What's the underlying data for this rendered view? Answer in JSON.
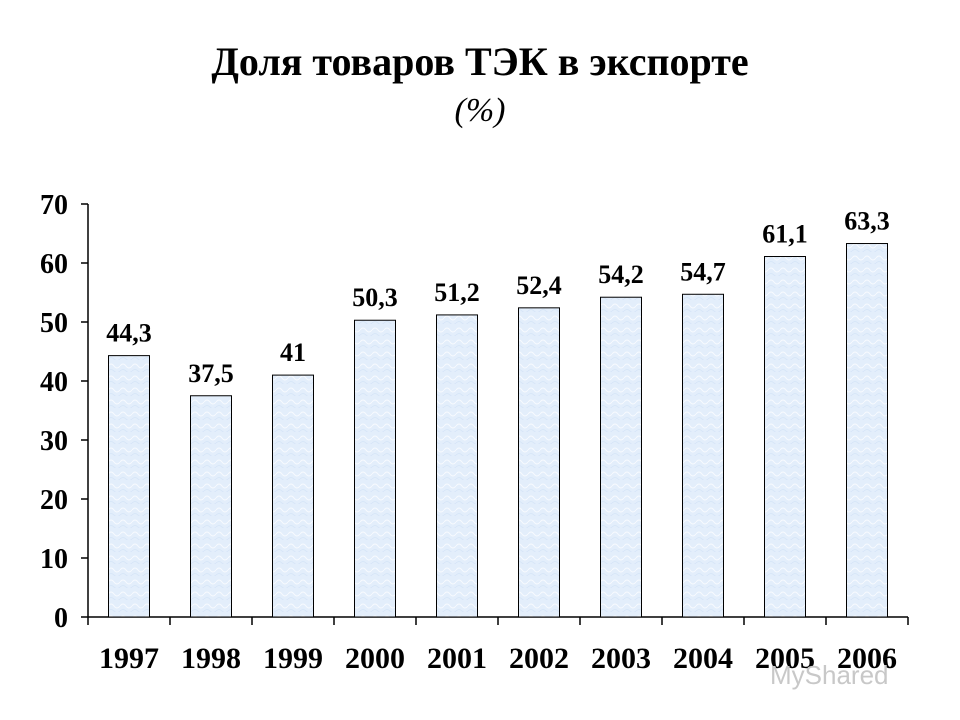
{
  "chart_data": {
    "type": "bar",
    "title": "Доля товаров ТЭК в экспорте",
    "subtitle": "(%)",
    "categories": [
      "1997",
      "1998",
      "1999",
      "2000",
      "2001",
      "2002",
      "2003",
      "2004",
      "2005",
      "2006"
    ],
    "values": [
      44.3,
      37.5,
      41,
      50.3,
      51.2,
      52.4,
      54.2,
      54.7,
      61.1,
      63.3
    ],
    "data_labels": [
      "44,3",
      "37,5",
      "41",
      "50,3",
      "51,2",
      "52,4",
      "54,2",
      "54,7",
      "61,1",
      "63,3"
    ],
    "y_ticks": [
      "0",
      "10",
      "20",
      "30",
      "40",
      "50",
      "60",
      "70"
    ],
    "ylim": [
      0,
      70
    ],
    "xlabel": "",
    "ylabel": "",
    "grid": false,
    "bar_fill": "#e3eefb",
    "bar_stroke": "#000000"
  },
  "watermark": "MyShared"
}
